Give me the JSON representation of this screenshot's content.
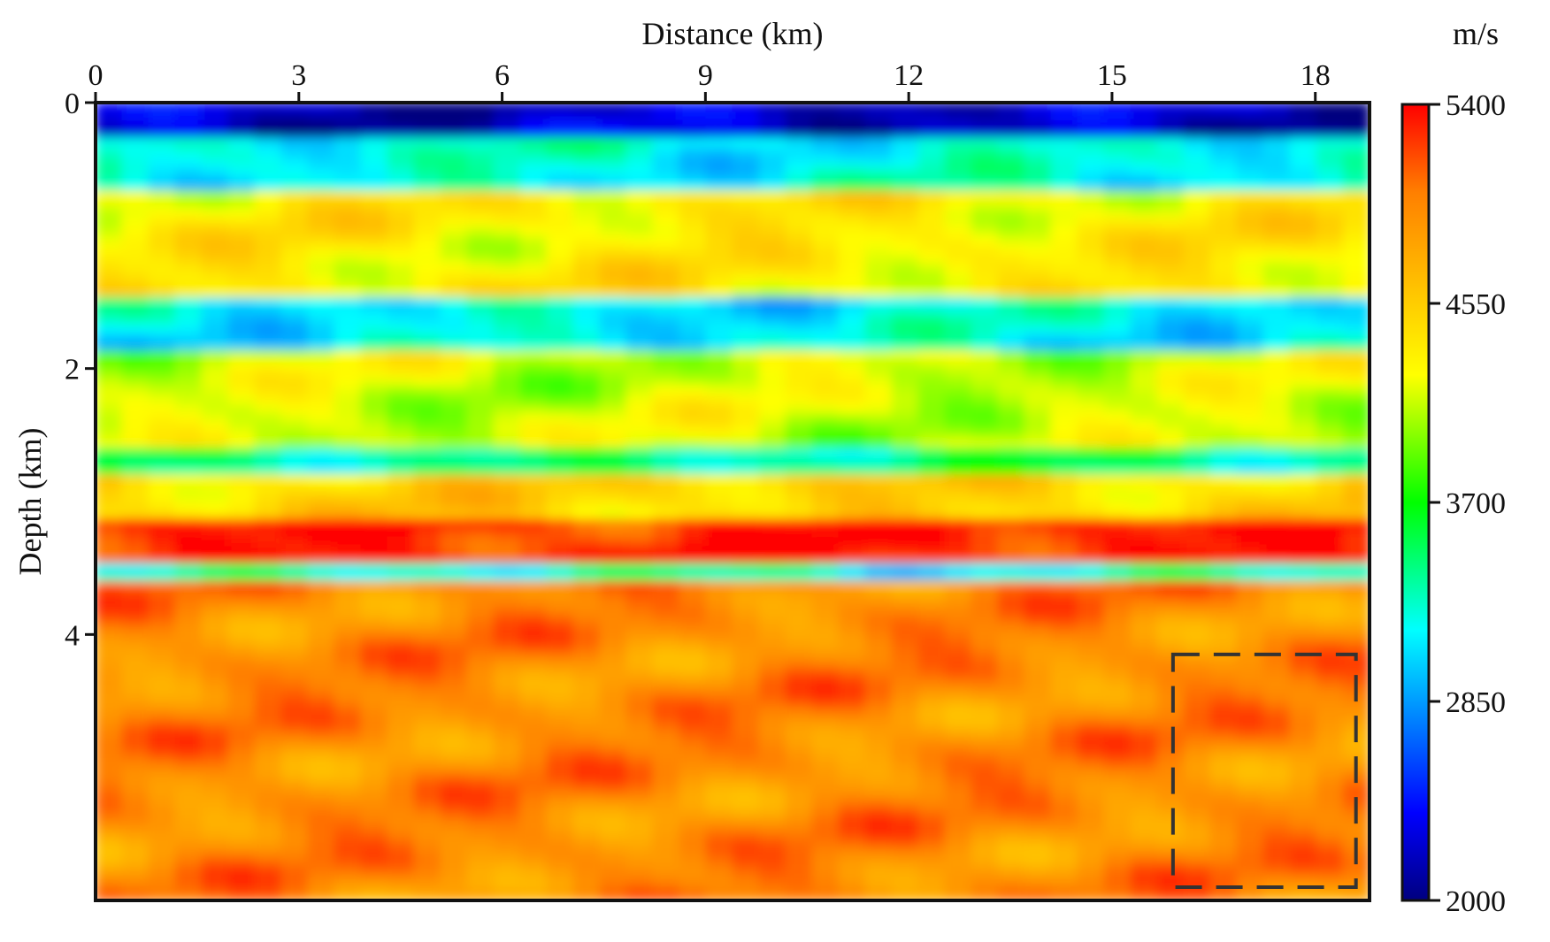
{
  "chart_data": {
    "type": "heatmap",
    "title": "",
    "xlabel": "Distance (km)",
    "ylabel": "Depth (km)",
    "x_axis_position": "top",
    "xlim": [
      0,
      18.8
    ],
    "ylim": [
      0,
      6
    ],
    "x_ticks": [
      0,
      3,
      6,
      9,
      12,
      15,
      18
    ],
    "y_ticks": [
      0,
      2,
      4
    ],
    "colorbar": {
      "unit": "m/s",
      "range": [
        2000,
        5400
      ],
      "ticks": [
        5400,
        4550,
        3700,
        2850,
        2000
      ],
      "colormap": "jet",
      "placement": "right"
    },
    "velocity_layers": [
      {
        "depth_top": 0.0,
        "depth_bottom": 0.25,
        "velocity": 2200
      },
      {
        "depth_top": 0.25,
        "depth_bottom": 0.7,
        "velocity": 3200
      },
      {
        "depth_top": 0.7,
        "depth_bottom": 1.45,
        "velocity": 4350
      },
      {
        "depth_top": 1.45,
        "depth_bottom": 1.85,
        "velocity": 3150
      },
      {
        "depth_top": 1.85,
        "depth_bottom": 2.6,
        "velocity": 4150
      },
      {
        "depth_top": 2.6,
        "depth_bottom": 2.8,
        "velocity": 3400
      },
      {
        "depth_top": 2.8,
        "depth_bottom": 3.15,
        "velocity": 4500
      },
      {
        "depth_top": 3.15,
        "depth_bottom": 3.45,
        "velocity": 5300
      },
      {
        "depth_top": 3.45,
        "depth_bottom": 3.6,
        "velocity": 3250
      },
      {
        "depth_top": 3.6,
        "depth_bottom": 6.0,
        "velocity": 4950
      }
    ],
    "grid": false,
    "legend": "none",
    "annotations": [
      {
        "type": "dashed-rectangle",
        "x_range": [
          15.9,
          18.6
        ],
        "y_range": [
          4.15,
          5.9
        ]
      }
    ]
  }
}
